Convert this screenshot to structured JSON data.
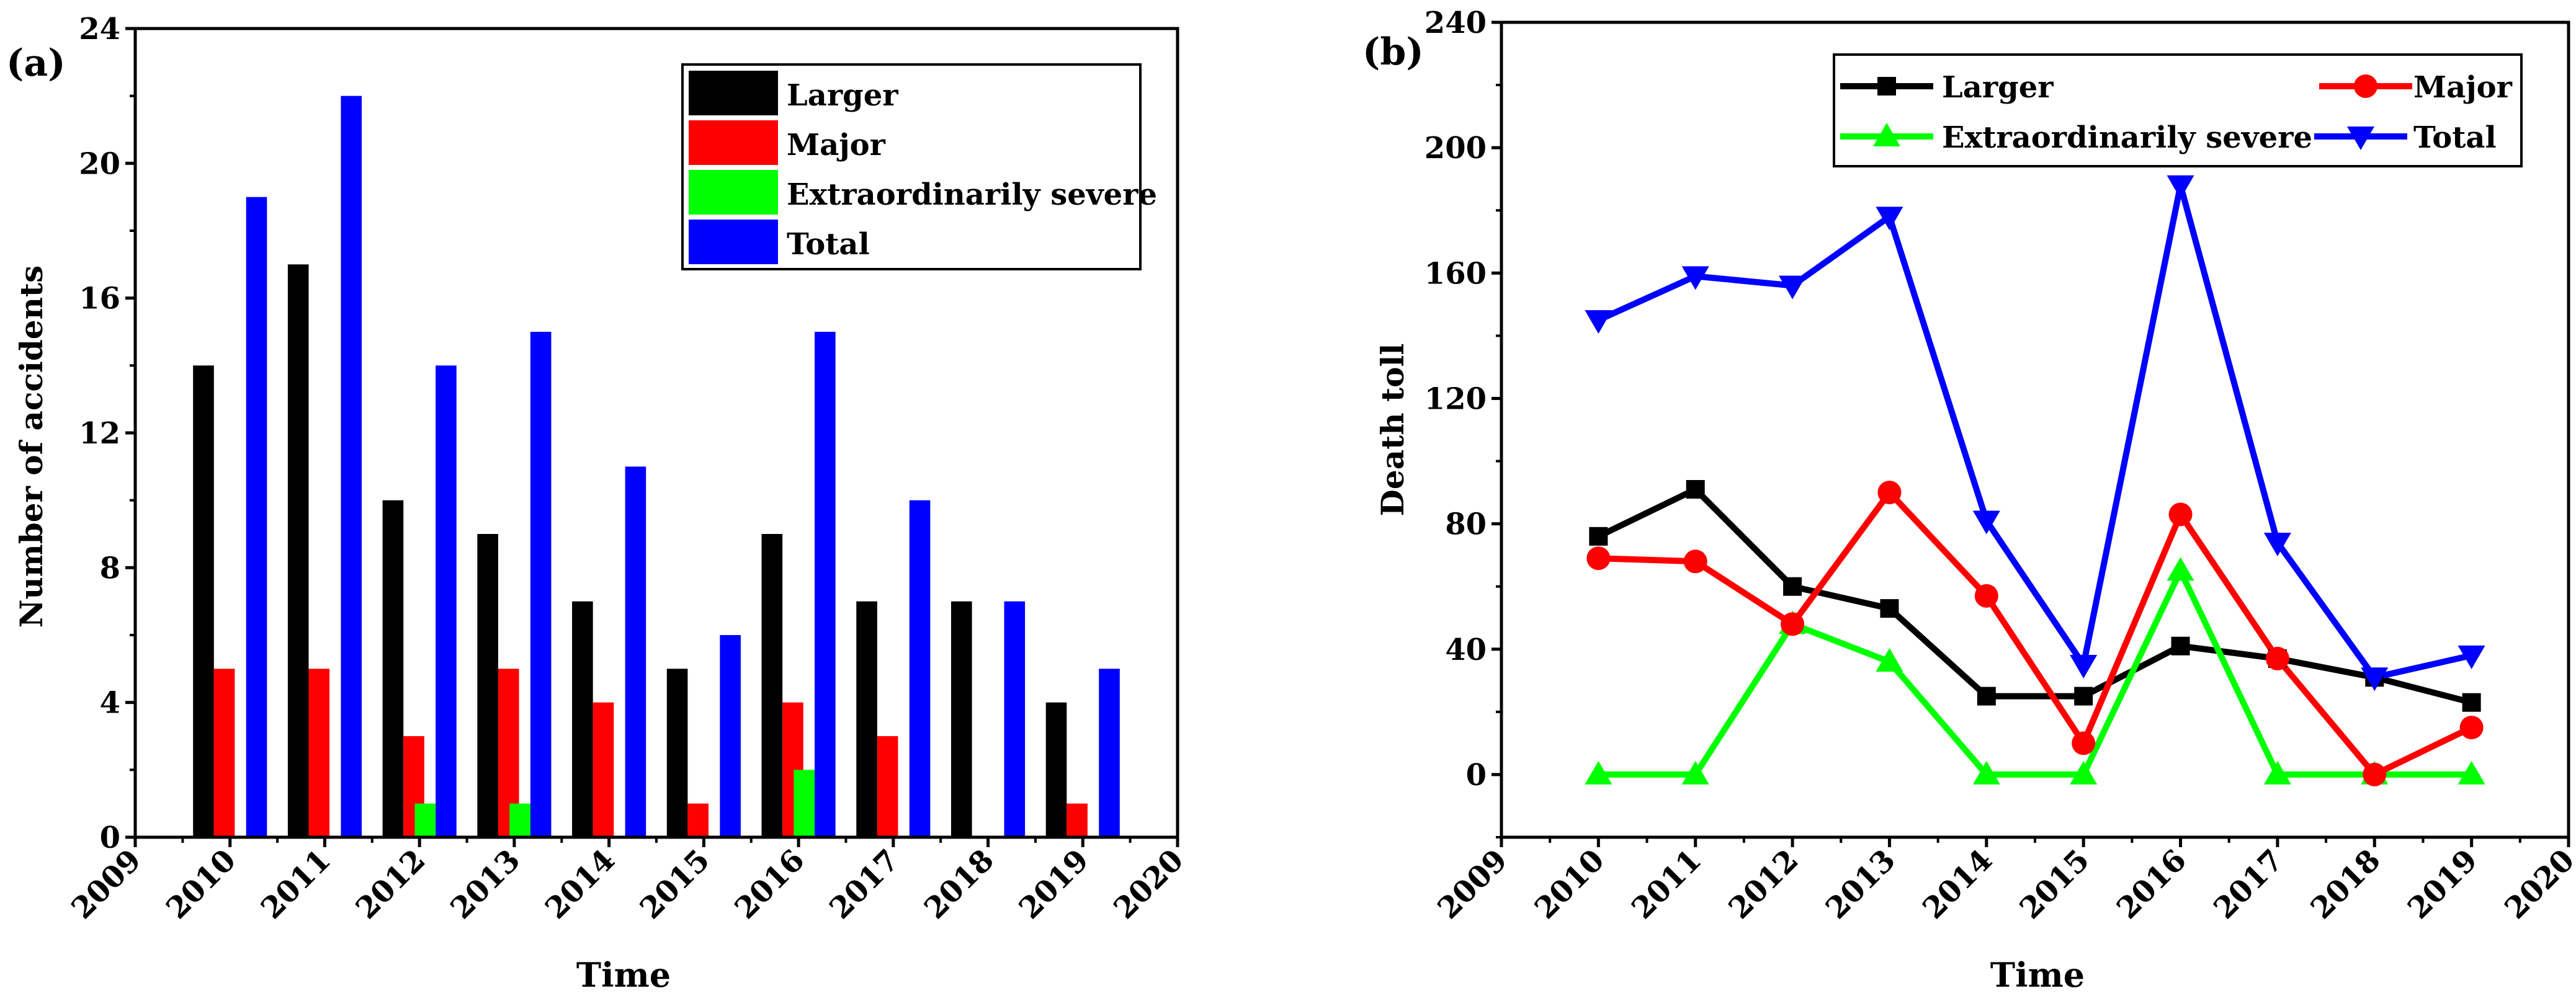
{
  "colors": {
    "larger": "#000000",
    "major": "#ff0000",
    "severe": "#00ff00",
    "total": "#0000ff",
    "axis": "#000000"
  },
  "chart_data": [
    {
      "type": "bar",
      "panel_label": "(a)",
      "xlabel": "Time",
      "ylabel": "Number of accidents",
      "xlim": [
        2009,
        2020
      ],
      "ylim": [
        0,
        24
      ],
      "x_ticks": [
        "2009",
        "2010",
        "2011",
        "2012",
        "2013",
        "2014",
        "2015",
        "2016",
        "2017",
        "2018",
        "2019",
        "2020"
      ],
      "y_ticks": [
        "0",
        "4",
        "8",
        "12",
        "16",
        "20",
        "24"
      ],
      "categories": [
        "2010",
        "2011",
        "2012",
        "2013",
        "2014",
        "2015",
        "2016",
        "2017",
        "2018",
        "2019"
      ],
      "series": [
        {
          "name": "Larger",
          "color_key": "larger",
          "values": [
            14,
            17,
            10,
            9,
            7,
            5,
            9,
            7,
            7,
            4
          ]
        },
        {
          "name": "Major",
          "color_key": "major",
          "values": [
            5,
            5,
            3,
            5,
            4,
            1,
            4,
            3,
            0,
            1
          ]
        },
        {
          "name": "Extraordinarily severe",
          "color_key": "severe",
          "values": [
            0,
            0,
            1,
            1,
            0,
            0,
            2,
            0,
            0,
            0
          ]
        },
        {
          "name": "Total",
          "color_key": "total",
          "values": [
            19,
            22,
            14,
            15,
            11,
            6,
            15,
            10,
            7,
            5
          ]
        }
      ],
      "legend_position": "top-right"
    },
    {
      "type": "line",
      "panel_label": "(b)",
      "xlabel": "Time",
      "ylabel": "Death toll",
      "xlim": [
        2009,
        2020
      ],
      "ylim": [
        -20,
        240
      ],
      "x_ticks": [
        "2009",
        "2010",
        "2011",
        "2012",
        "2013",
        "2014",
        "2015",
        "2016",
        "2017",
        "2018",
        "2019",
        "2020"
      ],
      "y_ticks": [
        "0",
        "40",
        "80",
        "120",
        "160",
        "200",
        "240"
      ],
      "x": [
        2010,
        2011,
        2012,
        2013,
        2014,
        2015,
        2016,
        2017,
        2018,
        2019
      ],
      "series": [
        {
          "name": "Larger",
          "color_key": "larger",
          "marker": "square",
          "values": [
            76,
            91,
            60,
            53,
            25,
            25,
            41,
            37,
            31,
            23
          ]
        },
        {
          "name": "Major",
          "color_key": "major",
          "marker": "circle",
          "values": [
            69,
            68,
            48,
            90,
            57,
            10,
            83,
            37,
            0,
            15
          ]
        },
        {
          "name": "Extraordinarily severe",
          "color_key": "severe",
          "marker": "triangle-up",
          "values": [
            0,
            0,
            48,
            36,
            0,
            0,
            65,
            0,
            0,
            0
          ]
        },
        {
          "name": "Total",
          "color_key": "total",
          "marker": "triangle-down",
          "values": [
            145,
            159,
            156,
            178,
            81,
            35,
            188,
            74,
            31,
            38
          ]
        }
      ],
      "legend_position": "top"
    }
  ]
}
